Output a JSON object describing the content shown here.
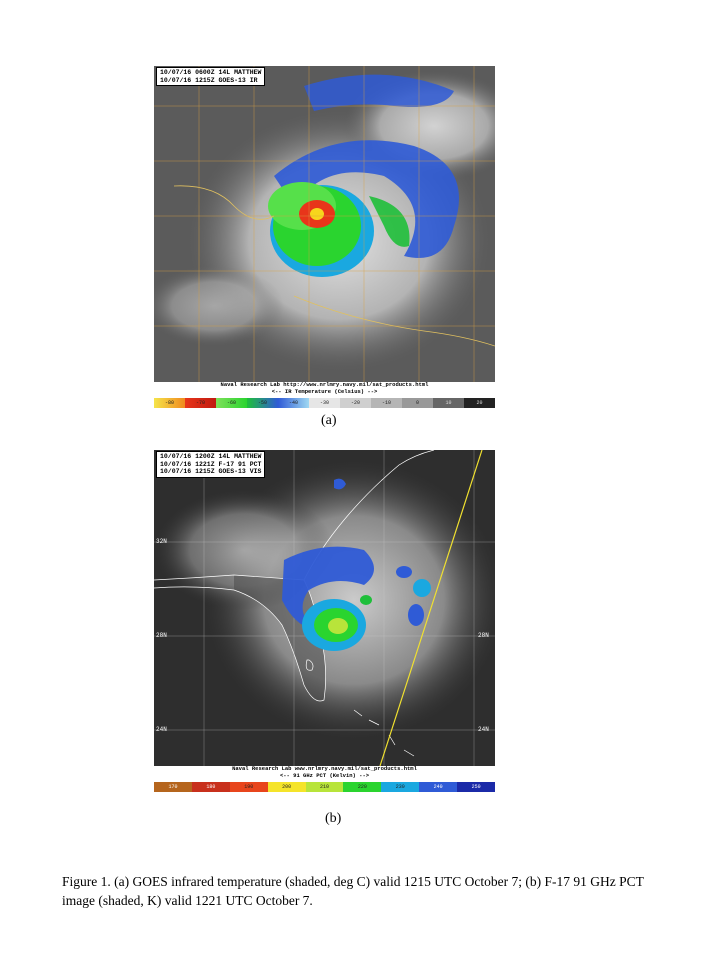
{
  "panel_a": {
    "header_lines": [
      "10/07/16 0600Z 14L MATTHEW",
      "10/07/16 1215Z GOES-13 IR"
    ],
    "footer_lines": [
      "Naval Research Lab http://www.nrlmry.navy.mil/sat_products.html",
      "<--  IR Temperature (Celsius)  -->"
    ],
    "colorbar_ticks": [
      "-80",
      "-70",
      "-60",
      "-50",
      "-40",
      "-30",
      "-20",
      "-10",
      "0",
      "10",
      "20"
    ],
    "label": "(a)"
  },
  "panel_b": {
    "header_lines": [
      "10/07/16 1200Z 14L MATTHEW",
      "10/07/16 1221Z F-17 91 PCT",
      "10/07/16 1215Z GOES-13 VIS"
    ],
    "footer_lines": [
      "Naval Research Lab  www.nrlmry.navy.mil/sat_products.html",
      "<--  91 GHz PCT (Kelvin)  -->"
    ],
    "colorbar_ticks": [
      "170",
      "180",
      "190",
      "200",
      "210",
      "220",
      "230",
      "240",
      "250"
    ],
    "lat_labels": [
      "32N",
      "28N",
      "24N"
    ],
    "label": "(b)"
  },
  "caption": "Figure 1. (a) GOES infrared temperature (shaded, deg C) valid 1215 UTC October 7; (b) F-17 91 GHz PCT image (shaded, K) valid 1221 UTC October 7."
}
